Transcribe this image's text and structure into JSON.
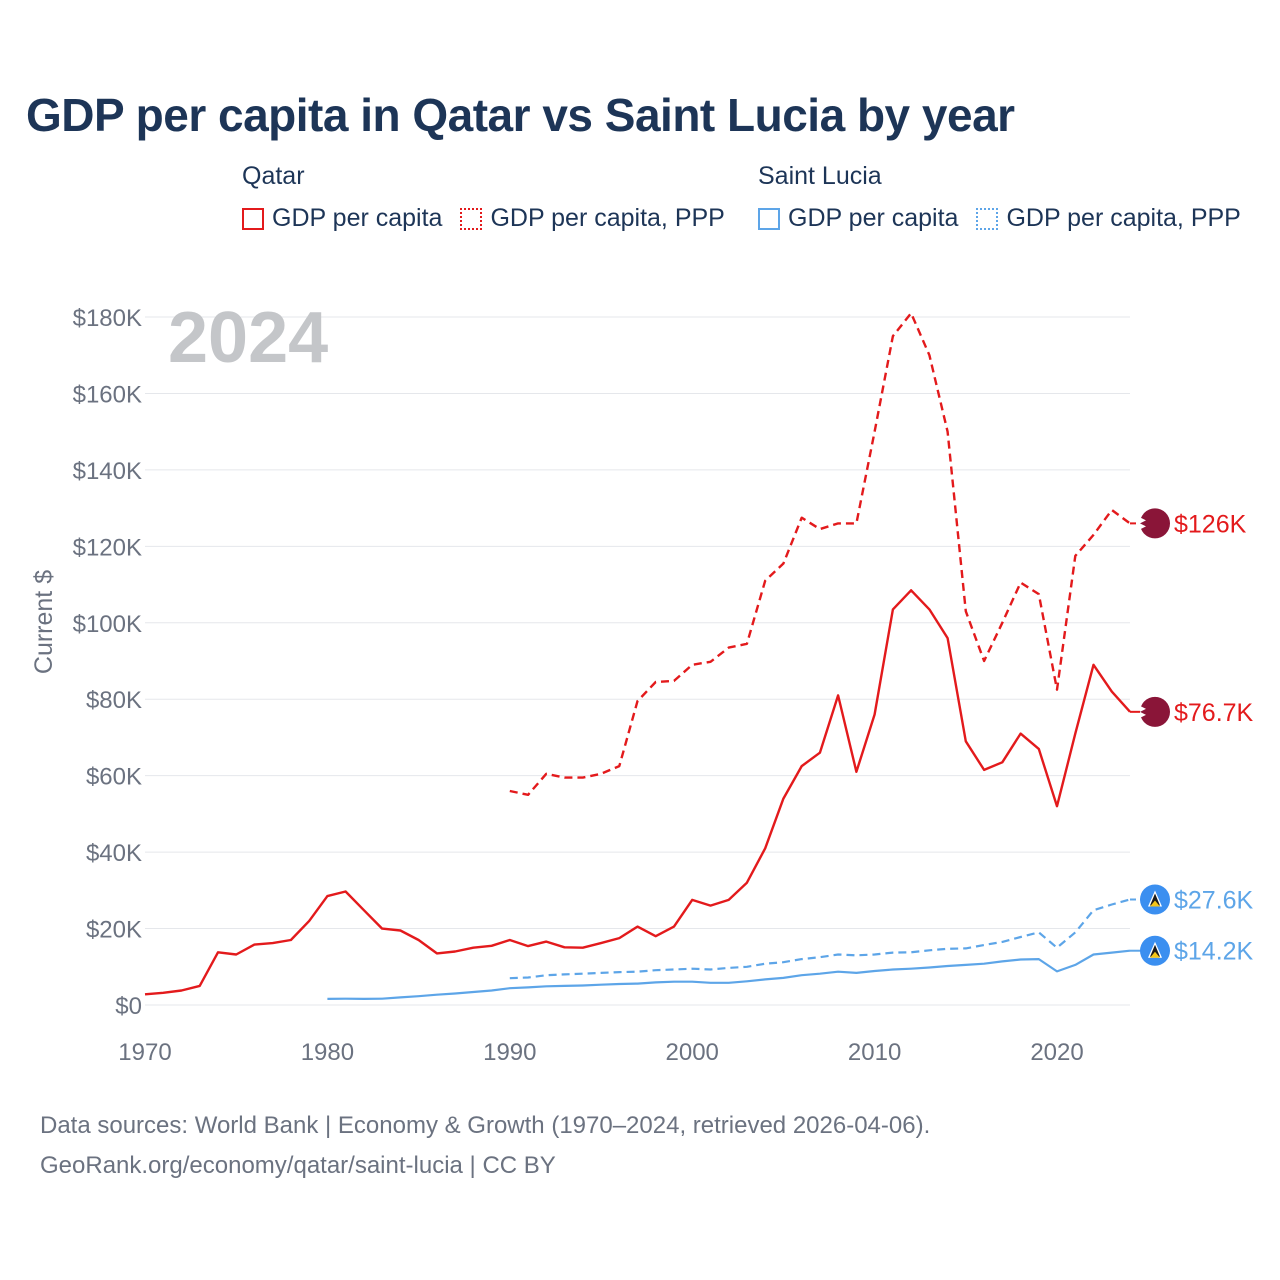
{
  "title": "GDP per capita in Qatar vs Saint Lucia by year",
  "legend": {
    "groups": [
      {
        "name": "Qatar",
        "color": "#e31a1c",
        "items": [
          {
            "label": "GDP per capita",
            "style": "solid"
          },
          {
            "label": "GDP per capita, PPP",
            "style": "dotted"
          }
        ]
      },
      {
        "name": "Saint Lucia",
        "color": "#5da5e8",
        "items": [
          {
            "label": "GDP per capita",
            "style": "solid"
          },
          {
            "label": "GDP per capita, PPP",
            "style": "dotted"
          }
        ]
      }
    ]
  },
  "year_watermark": "2024",
  "source": {
    "line1": "Data sources: World Bank | Economy & Growth (1970–2024, retrieved 2026-04-06).",
    "line2": "GeoRank.org/economy/qatar/saint-lucia | CC BY"
  },
  "chart_data": {
    "type": "line",
    "title": "GDP per capita in Qatar vs Saint Lucia by year",
    "ylabel": "Current $",
    "xlabel": "",
    "xlim": [
      1970,
      2024
    ],
    "ylim": [
      0,
      180000
    ],
    "x_ticks": [
      1970,
      1980,
      1990,
      2000,
      2010,
      2020
    ],
    "y_ticks": [
      0,
      20000,
      40000,
      60000,
      80000,
      100000,
      120000,
      140000,
      160000,
      180000
    ],
    "y_tick_labels": [
      "$0",
      "$20K",
      "$40K",
      "$60K",
      "$80K",
      "$100K",
      "$120K",
      "$140K",
      "$160K",
      "$180K"
    ],
    "grid": true,
    "series": [
      {
        "name": "Qatar GDP per capita",
        "country": "Qatar",
        "color": "#e31a1c",
        "dash": "solid",
        "end_label": "$76.7K",
        "x": [
          1970,
          1971,
          1972,
          1973,
          1974,
          1975,
          1976,
          1977,
          1978,
          1979,
          1980,
          1981,
          1982,
          1983,
          1984,
          1985,
          1986,
          1987,
          1988,
          1989,
          1990,
          1991,
          1992,
          1993,
          1994,
          1995,
          1996,
          1997,
          1998,
          1999,
          2000,
          2001,
          2002,
          2003,
          2004,
          2005,
          2006,
          2007,
          2008,
          2009,
          2010,
          2011,
          2012,
          2013,
          2014,
          2015,
          2016,
          2017,
          2018,
          2019,
          2020,
          2021,
          2022,
          2023,
          2024
        ],
        "values": [
          2800,
          3200,
          3800,
          5000,
          13800,
          13200,
          15800,
          16200,
          17000,
          22000,
          28500,
          29700,
          24800,
          20000,
          19500,
          17000,
          13500,
          14000,
          15000,
          15500,
          17000,
          15400,
          16600,
          15100,
          15000,
          16200,
          17500,
          20500,
          18000,
          20500,
          27500,
          26000,
          27500,
          32000,
          41000,
          54000,
          62500,
          66000,
          81000,
          61000,
          76000,
          103500,
          108500,
          103500,
          96000,
          69000,
          61500,
          63500,
          71000,
          67000,
          52000,
          71000,
          89000,
          82000,
          76700
        ]
      },
      {
        "name": "Qatar GDP per capita, PPP",
        "country": "Qatar",
        "color": "#e31a1c",
        "dash": "dashed",
        "end_label": "$126K",
        "x": [
          1990,
          1991,
          1992,
          1993,
          1994,
          1995,
          1996,
          1997,
          1998,
          1999,
          2000,
          2001,
          2002,
          2003,
          2004,
          2005,
          2006,
          2007,
          2008,
          2009,
          2010,
          2011,
          2012,
          2013,
          2014,
          2015,
          2016,
          2017,
          2018,
          2019,
          2020,
          2021,
          2022,
          2023,
          2024
        ],
        "values": [
          56000,
          55000,
          60500,
          59500,
          59500,
          60500,
          62500,
          79500,
          84500,
          84800,
          89000,
          89800,
          93500,
          94500,
          111000,
          115500,
          127500,
          124500,
          126000,
          126000,
          150000,
          175000,
          181000,
          170000,
          150000,
          103000,
          90000,
          100000,
          110500,
          107500,
          82500,
          117500,
          123000,
          129500,
          126000
        ]
      },
      {
        "name": "Saint Lucia GDP per capita",
        "country": "Saint Lucia",
        "color": "#5da5e8",
        "dash": "solid",
        "end_label": "$14.2K",
        "x": [
          1980,
          1981,
          1982,
          1983,
          1984,
          1985,
          1986,
          1987,
          1988,
          1989,
          1990,
          1991,
          1992,
          1993,
          1994,
          1995,
          1996,
          1997,
          1998,
          1999,
          2000,
          2001,
          2002,
          2003,
          2004,
          2005,
          2006,
          2007,
          2008,
          2009,
          2010,
          2011,
          2012,
          2013,
          2014,
          2015,
          2016,
          2017,
          2018,
          2019,
          2020,
          2021,
          2022,
          2023,
          2024
        ],
        "values": [
          1600,
          1650,
          1600,
          1650,
          2000,
          2300,
          2700,
          3000,
          3400,
          3800,
          4400,
          4600,
          4900,
          5000,
          5100,
          5300,
          5500,
          5600,
          5900,
          6100,
          6100,
          5800,
          5800,
          6200,
          6700,
          7100,
          7800,
          8200,
          8700,
          8400,
          8900,
          9300,
          9500,
          9800,
          10200,
          10500,
          10800,
          11400,
          11900,
          12000,
          8800,
          10500,
          13200,
          13700,
          14200
        ]
      },
      {
        "name": "Saint Lucia GDP per capita, PPP",
        "country": "Saint Lucia",
        "color": "#5da5e8",
        "dash": "dashed",
        "end_label": "$27.6K",
        "x": [
          1990,
          1991,
          1992,
          1993,
          1994,
          1995,
          1996,
          1997,
          1998,
          1999,
          2000,
          2001,
          2002,
          2003,
          2004,
          2005,
          2006,
          2007,
          2008,
          2009,
          2010,
          2011,
          2012,
          2013,
          2014,
          2015,
          2016,
          2017,
          2018,
          2019,
          2020,
          2021,
          2022,
          2023,
          2024
        ],
        "values": [
          7000,
          7200,
          7800,
          8000,
          8200,
          8400,
          8600,
          8700,
          9100,
          9300,
          9500,
          9300,
          9700,
          10000,
          10800,
          11200,
          12000,
          12500,
          13200,
          13000,
          13200,
          13700,
          13800,
          14300,
          14700,
          14800,
          15700,
          16500,
          17800,
          19000,
          15000,
          19000,
          24800,
          26300,
          27600
        ]
      }
    ]
  }
}
